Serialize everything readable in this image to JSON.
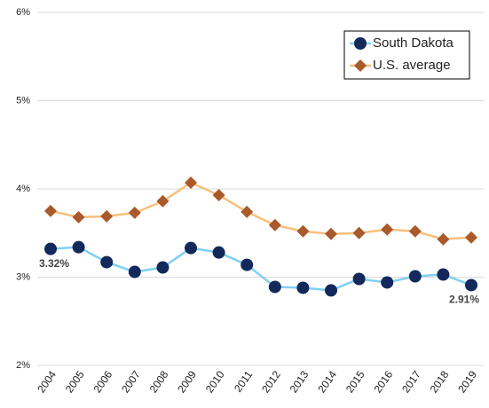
{
  "chart_data": {
    "type": "line",
    "categories": [
      "2004",
      "2005",
      "2006",
      "2007",
      "2008",
      "2009",
      "2010",
      "2011",
      "2012",
      "2013",
      "2014",
      "2015",
      "2016",
      "2017",
      "2018",
      "2019"
    ],
    "series": [
      {
        "name": "South Dakota",
        "color": "#7fd0f2",
        "marker_color": "#13295b",
        "marker": "circle",
        "values": [
          3.32,
          3.34,
          3.17,
          3.06,
          3.11,
          3.33,
          3.28,
          3.14,
          2.89,
          2.88,
          2.85,
          2.98,
          2.94,
          3.01,
          3.03,
          2.91
        ],
        "value_labels": [
          "3.32%",
          null,
          null,
          null,
          null,
          null,
          null,
          null,
          null,
          null,
          null,
          null,
          null,
          null,
          null,
          "2.91%"
        ]
      },
      {
        "name": "U.S. average",
        "color": "#f6c07e",
        "marker_color": "#a9592a",
        "marker": "diamond",
        "values": [
          3.75,
          3.68,
          3.69,
          3.73,
          3.86,
          4.07,
          3.93,
          3.74,
          3.59,
          3.52,
          3.49,
          3.5,
          3.54,
          3.52,
          3.43,
          3.45
        ]
      }
    ],
    "ylim": [
      2,
      6
    ],
    "yticks": [
      {
        "value": 2,
        "label": "2%"
      },
      {
        "value": 3,
        "label": "3%"
      },
      {
        "value": 4,
        "label": "4%"
      },
      {
        "value": 5,
        "label": "5%"
      },
      {
        "value": 6,
        "label": "6%"
      }
    ],
    "grid": true,
    "legend": "top-right"
  }
}
